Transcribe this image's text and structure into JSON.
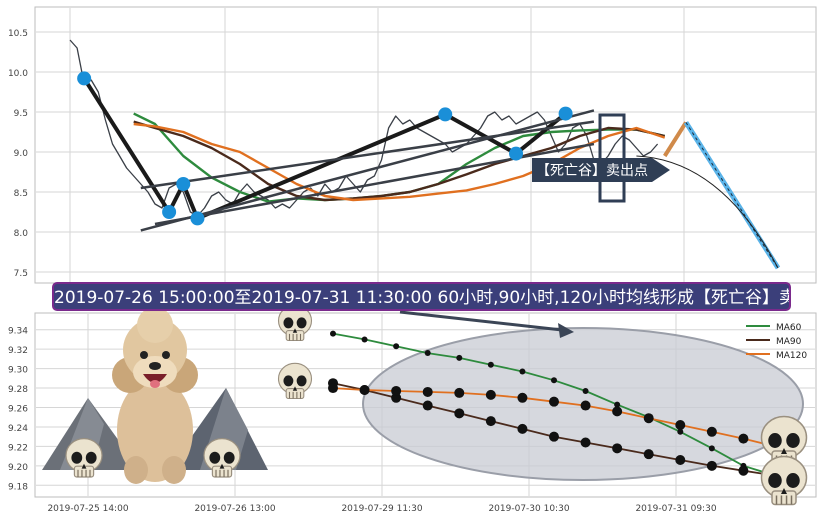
{
  "annotations": {
    "sell_signal_label": "【死亡谷】卖出点",
    "banner_text": "2019-07-26 15:00:00至2019-07-31 11:30:00 60小时,90小时,120小时均线形成【死亡谷】卖出点"
  },
  "colors": {
    "price": "#3a3f47",
    "ma60": "#2e8b3e",
    "ma90": "#4a2a1c",
    "ma120": "#e07020",
    "marker": "#1a8fd8",
    "banner_bg": "#3b3f7a",
    "label_bg": "#2f3e55",
    "ellipse_fill": "#c8cbd3"
  },
  "icons": {
    "mascot": "poodle-dog-icon",
    "skull": "skull-icon",
    "mountain": "mountain-icon"
  },
  "chart_data": [
    {
      "type": "line",
      "ylim": [
        7.4,
        10.65
      ],
      "yticks": [
        "7.5",
        "8.0",
        "8.5",
        "9.0",
        "9.5",
        "10.0",
        "10.5"
      ],
      "grid": true,
      "x_range": [
        0,
        100
      ],
      "series": [
        {
          "key": "price",
          "x": [
            0,
            1,
            2,
            3,
            4,
            5,
            6,
            7,
            8,
            9,
            10,
            11,
            12,
            13,
            14,
            15,
            16,
            17,
            18,
            19,
            20,
            21,
            22,
            23,
            24,
            25,
            26,
            27,
            28,
            29,
            30,
            31,
            32,
            33,
            34,
            35,
            36,
            37,
            38,
            39,
            40,
            41,
            42,
            43,
            44,
            45,
            46,
            47,
            48,
            49,
            50,
            51,
            52,
            53,
            54,
            55,
            56,
            57,
            58,
            59,
            60,
            61,
            62,
            63,
            64,
            65,
            66,
            67,
            68,
            69,
            70,
            71,
            72,
            73,
            74,
            75,
            76,
            77,
            78,
            79,
            80,
            81,
            82,
            83
          ],
          "values": [
            10.4,
            10.3,
            9.85,
            9.9,
            9.75,
            9.4,
            9.1,
            8.95,
            8.8,
            8.7,
            8.6,
            8.5,
            8.35,
            8.3,
            8.55,
            8.6,
            8.5,
            8.25,
            8.2,
            8.3,
            8.45,
            8.5,
            8.4,
            8.35,
            8.5,
            8.6,
            8.5,
            8.45,
            8.4,
            8.3,
            8.35,
            8.3,
            8.4,
            8.5,
            8.55,
            8.45,
            8.6,
            8.5,
            8.55,
            8.7,
            8.6,
            8.5,
            8.65,
            8.7,
            8.9,
            9.3,
            9.45,
            9.35,
            9.4,
            9.3,
            9.25,
            9.2,
            9.15,
            9.1,
            9.0,
            9.05,
            9.1,
            9.2,
            9.3,
            9.45,
            9.5,
            9.4,
            9.45,
            9.35,
            9.4,
            9.45,
            9.5,
            9.4,
            9.2,
            9.0,
            9.1,
            9.3,
            9.35,
            9.2,
            8.9,
            8.85,
            8.95,
            9.1,
            9.2,
            9.15,
            9.05,
            8.95,
            9.0,
            9.1
          ]
        },
        {
          "name": "MA60",
          "key": "ma60",
          "x": [
            9,
            12,
            16,
            20,
            24,
            28,
            32,
            36,
            40,
            44,
            48,
            52,
            56,
            60,
            64,
            68,
            72,
            76,
            80,
            84
          ],
          "values": [
            9.48,
            9.35,
            8.95,
            8.68,
            8.5,
            8.38,
            8.42,
            8.4,
            8.42,
            8.45,
            8.5,
            8.6,
            8.85,
            9.05,
            9.2,
            9.25,
            9.27,
            9.28,
            9.28,
            9.2
          ]
        },
        {
          "name": "MA90",
          "key": "ma90",
          "x": [
            9,
            12,
            16,
            20,
            24,
            28,
            32,
            36,
            40,
            44,
            48,
            52,
            56,
            60,
            64,
            68,
            72,
            76,
            80,
            84
          ],
          "values": [
            9.38,
            9.3,
            9.2,
            9.05,
            8.85,
            8.6,
            8.45,
            8.4,
            8.42,
            8.45,
            8.5,
            8.6,
            8.72,
            8.85,
            8.95,
            9.05,
            9.2,
            9.3,
            9.28,
            9.2
          ]
        },
        {
          "name": "MA120",
          "key": "ma120",
          "x": [
            9,
            12,
            16,
            20,
            24,
            28,
            32,
            36,
            40,
            44,
            48,
            52,
            56,
            60,
            64,
            68,
            72,
            76,
            80,
            84
          ],
          "values": [
            9.35,
            9.32,
            9.25,
            9.1,
            9.0,
            8.8,
            8.6,
            8.45,
            8.4,
            8.42,
            8.44,
            8.48,
            8.52,
            8.6,
            8.7,
            8.85,
            9.05,
            9.2,
            9.3,
            9.18
          ]
        }
      ],
      "markers": {
        "x": [
          2,
          14,
          16,
          18,
          53,
          63,
          70
        ],
        "values": [
          9.92,
          8.25,
          8.6,
          8.17,
          9.47,
          8.98,
          9.48
        ]
      },
      "projection": {
        "x": [
          87,
          100
        ],
        "values": [
          9.37,
          7.55
        ]
      }
    },
    {
      "type": "line",
      "ylim": [
        9.17,
        9.35
      ],
      "yticks": [
        "9.18",
        "9.20",
        "9.22",
        "9.24",
        "9.26",
        "9.28",
        "9.30",
        "9.32",
        "9.34"
      ],
      "xticks": [
        "2019-07-25 14:00",
        "2019-07-26 13:00",
        "2019-07-29 11:30",
        "2019-07-30 10:30",
        "2019-07-31 09:30"
      ],
      "grid": true,
      "legend": "top-right",
      "series": [
        {
          "name": "MA60",
          "key": "ma60",
          "values": [
            9.336,
            9.33,
            9.323,
            9.316,
            9.311,
            9.304,
            9.297,
            9.288,
            9.277,
            9.263,
            9.25,
            9.235,
            9.218,
            9.2,
            9.19
          ]
        },
        {
          "name": "MA90",
          "key": "ma90",
          "values": [
            9.285,
            9.278,
            9.27,
            9.262,
            9.254,
            9.246,
            9.238,
            9.23,
            9.224,
            9.218,
            9.212,
            9.206,
            9.2,
            9.195,
            9.19
          ]
        },
        {
          "name": "MA120",
          "key": "ma120",
          "values": [
            9.28,
            9.278,
            9.277,
            9.276,
            9.275,
            9.273,
            9.27,
            9.266,
            9.262,
            9.256,
            9.249,
            9.242,
            9.235,
            9.228,
            9.22
          ]
        }
      ]
    }
  ]
}
